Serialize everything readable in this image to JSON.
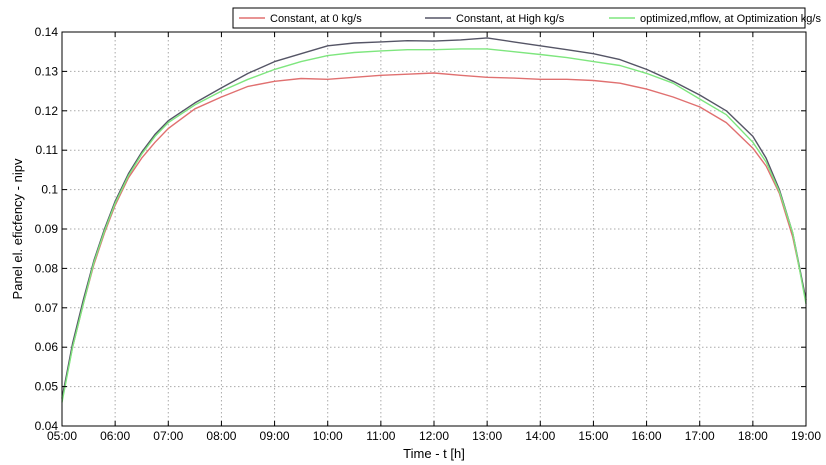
{
  "chart_data": {
    "type": "line",
    "title": "",
    "xlabel": "Time - t [h]",
    "ylabel": "Panel el. eficfency - nipv",
    "xlim": [
      5,
      19
    ],
    "ylim": [
      0.04,
      0.14
    ],
    "x_ticks": [
      {
        "value": 5,
        "label": "05:00"
      },
      {
        "value": 6,
        "label": "06:00"
      },
      {
        "value": 7,
        "label": "07:00"
      },
      {
        "value": 8,
        "label": "08:00"
      },
      {
        "value": 9,
        "label": "09:00"
      },
      {
        "value": 10,
        "label": "10:00"
      },
      {
        "value": 11,
        "label": "11:00"
      },
      {
        "value": 12,
        "label": "12:00"
      },
      {
        "value": 13,
        "label": "13:00"
      },
      {
        "value": 14,
        "label": "14:00"
      },
      {
        "value": 15,
        "label": "15:00"
      },
      {
        "value": 16,
        "label": "16:00"
      },
      {
        "value": 17,
        "label": "17:00"
      },
      {
        "value": 18,
        "label": "18:00"
      },
      {
        "value": 19,
        "label": "19:00"
      }
    ],
    "y_ticks": [
      {
        "value": 0.04,
        "label": "0.04"
      },
      {
        "value": 0.05,
        "label": "0.05"
      },
      {
        "value": 0.06,
        "label": "0.06"
      },
      {
        "value": 0.07,
        "label": "0.07"
      },
      {
        "value": 0.08,
        "label": "0.08"
      },
      {
        "value": 0.09,
        "label": "0.09"
      },
      {
        "value": 0.1,
        "label": "0.1"
      },
      {
        "value": 0.11,
        "label": "0.11"
      },
      {
        "value": 0.12,
        "label": "0.12"
      },
      {
        "value": 0.13,
        "label": "0.13"
      },
      {
        "value": 0.14,
        "label": "0.14"
      }
    ],
    "grid": true,
    "legend_position": "top-right",
    "series": [
      {
        "name": "Constant, at 0 kg/s",
        "color": "#e07070",
        "points": [
          [
            5.0,
            0.047
          ],
          [
            5.2,
            0.06
          ],
          [
            5.4,
            0.071
          ],
          [
            5.6,
            0.081
          ],
          [
            5.8,
            0.089
          ],
          [
            6.0,
            0.096
          ],
          [
            6.25,
            0.103
          ],
          [
            6.5,
            0.108
          ],
          [
            6.75,
            0.112
          ],
          [
            7.0,
            0.1155
          ],
          [
            7.5,
            0.1205
          ],
          [
            8.0,
            0.1235
          ],
          [
            8.5,
            0.1262
          ],
          [
            9.0,
            0.1275
          ],
          [
            9.5,
            0.1282
          ],
          [
            10.0,
            0.128
          ],
          [
            10.5,
            0.1285
          ],
          [
            11.0,
            0.129
          ],
          [
            11.5,
            0.1293
          ],
          [
            12.0,
            0.1296
          ],
          [
            12.5,
            0.129
          ],
          [
            13.0,
            0.1285
          ],
          [
            13.5,
            0.1283
          ],
          [
            14.0,
            0.128
          ],
          [
            14.5,
            0.128
          ],
          [
            15.0,
            0.1277
          ],
          [
            15.5,
            0.127
          ],
          [
            16.0,
            0.1255
          ],
          [
            16.5,
            0.1235
          ],
          [
            17.0,
            0.121
          ],
          [
            17.5,
            0.117
          ],
          [
            18.0,
            0.1105
          ],
          [
            18.25,
            0.106
          ],
          [
            18.5,
            0.099
          ],
          [
            18.75,
            0.088
          ],
          [
            19.0,
            0.072
          ]
        ]
      },
      {
        "name": "Constant, at High kg/s",
        "color": "#555566",
        "points": [
          [
            5.0,
            0.047
          ],
          [
            5.2,
            0.061
          ],
          [
            5.4,
            0.072
          ],
          [
            5.6,
            0.082
          ],
          [
            5.8,
            0.09
          ],
          [
            6.0,
            0.097
          ],
          [
            6.25,
            0.104
          ],
          [
            6.5,
            0.1095
          ],
          [
            6.75,
            0.114
          ],
          [
            7.0,
            0.1175
          ],
          [
            7.5,
            0.122
          ],
          [
            8.0,
            0.1258
          ],
          [
            8.5,
            0.1295
          ],
          [
            9.0,
            0.1325
          ],
          [
            9.5,
            0.1345
          ],
          [
            10.0,
            0.1365
          ],
          [
            10.5,
            0.1372
          ],
          [
            11.0,
            0.1375
          ],
          [
            11.5,
            0.1378
          ],
          [
            12.0,
            0.1377
          ],
          [
            12.5,
            0.138
          ],
          [
            13.0,
            0.1385
          ],
          [
            13.5,
            0.1375
          ],
          [
            14.0,
            0.1365
          ],
          [
            14.5,
            0.1355
          ],
          [
            15.0,
            0.1345
          ],
          [
            15.5,
            0.133
          ],
          [
            16.0,
            0.1305
          ],
          [
            16.5,
            0.1275
          ],
          [
            17.0,
            0.124
          ],
          [
            17.5,
            0.12
          ],
          [
            18.0,
            0.1135
          ],
          [
            18.25,
            0.108
          ],
          [
            18.5,
            0.1
          ],
          [
            18.75,
            0.089
          ],
          [
            19.0,
            0.072
          ]
        ]
      },
      {
        "name": "optimized,mflow, at Optimization kg/s",
        "color": "#7ee67e",
        "points": [
          [
            5.0,
            0.046
          ],
          [
            5.2,
            0.06
          ],
          [
            5.4,
            0.071
          ],
          [
            5.6,
            0.0815
          ],
          [
            5.8,
            0.0895
          ],
          [
            6.0,
            0.0965
          ],
          [
            6.25,
            0.1035
          ],
          [
            6.5,
            0.109
          ],
          [
            6.75,
            0.1135
          ],
          [
            7.0,
            0.117
          ],
          [
            7.5,
            0.1215
          ],
          [
            8.0,
            0.125
          ],
          [
            8.5,
            0.128
          ],
          [
            9.0,
            0.1305
          ],
          [
            9.5,
            0.1325
          ],
          [
            10.0,
            0.134
          ],
          [
            10.5,
            0.1348
          ],
          [
            11.0,
            0.1352
          ],
          [
            11.5,
            0.1355
          ],
          [
            12.0,
            0.1355
          ],
          [
            12.5,
            0.1357
          ],
          [
            13.0,
            0.1357
          ],
          [
            13.5,
            0.135
          ],
          [
            14.0,
            0.1343
          ],
          [
            14.5,
            0.1335
          ],
          [
            15.0,
            0.1325
          ],
          [
            15.5,
            0.1315
          ],
          [
            16.0,
            0.1295
          ],
          [
            16.5,
            0.127
          ],
          [
            17.0,
            0.123
          ],
          [
            17.5,
            0.119
          ],
          [
            18.0,
            0.112
          ],
          [
            18.25,
            0.107
          ],
          [
            18.5,
            0.0995
          ],
          [
            18.75,
            0.089
          ],
          [
            19.0,
            0.071
          ]
        ]
      }
    ]
  }
}
